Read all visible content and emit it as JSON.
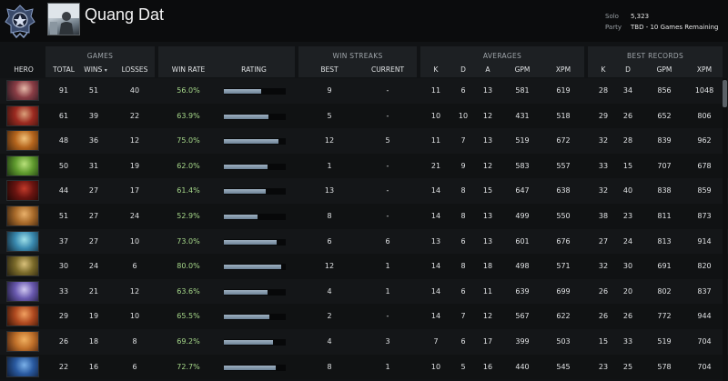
{
  "player": {
    "name": "Quang Dat",
    "solo_label": "Solo",
    "solo_value": "5,323",
    "party_label": "Party",
    "party_value": "TBD - 10 Games Remaining"
  },
  "groups": {
    "games": "GAMES",
    "win_streaks": "WIN STREAKS",
    "averages": "AVERAGES",
    "best_records": "BEST RECORDS"
  },
  "columns": {
    "hero": "HERO",
    "total": "TOTAL",
    "wins": "WINS",
    "losses": "LOSSES",
    "win_rate": "WIN RATE",
    "rating": "RATING",
    "best": "BEST",
    "current": "CURRENT",
    "k": "K",
    "d": "D",
    "a": "A",
    "gpm": "GPM",
    "xpm": "XPM",
    "best_k": "K",
    "best_d": "D",
    "best_gpm": "GPM",
    "best_xpm": "XPM"
  },
  "colors": {
    "winrate_text": "#a6d88a",
    "rating_bar": "#7d93a7"
  },
  "rows": [
    {
      "portrait": [
        "#e6b9a8",
        "#8a3d45",
        "#2b1a22"
      ],
      "total": "91",
      "wins": "51",
      "losses": "40",
      "win_rate": "56.0%",
      "rating": 0.6,
      "best": "9",
      "current": "-",
      "k": "11",
      "d": "6",
      "a": "13",
      "gpm": "581",
      "xpm": "619",
      "bk": "28",
      "bd": "34",
      "bgpm": "856",
      "bxpm": "1048"
    },
    {
      "portrait": [
        "#d9a07a",
        "#9b2a20",
        "#3a1410"
      ],
      "total": "61",
      "wins": "39",
      "losses": "22",
      "win_rate": "63.9%",
      "rating": 0.72,
      "best": "5",
      "current": "-",
      "k": "10",
      "d": "10",
      "a": "12",
      "gpm": "431",
      "xpm": "518",
      "bk": "29",
      "bd": "26",
      "bgpm": "652",
      "bxpm": "806"
    },
    {
      "portrait": [
        "#f2c27a",
        "#b5651d",
        "#4a2a10"
      ],
      "total": "48",
      "wins": "36",
      "losses": "12",
      "win_rate": "75.0%",
      "rating": 0.88,
      "best": "12",
      "current": "5",
      "k": "11",
      "d": "7",
      "a": "13",
      "gpm": "519",
      "xpm": "672",
      "bk": "32",
      "bd": "28",
      "bgpm": "839",
      "bxpm": "962"
    },
    {
      "portrait": [
        "#b8e07a",
        "#5f9a2e",
        "#1f3a12"
      ],
      "total": "50",
      "wins": "31",
      "losses": "19",
      "win_rate": "62.0%",
      "rating": 0.7,
      "best": "1",
      "current": "-",
      "k": "21",
      "d": "9",
      "a": "12",
      "gpm": "583",
      "xpm": "557",
      "bk": "33",
      "bd": "15",
      "bgpm": "707",
      "bxpm": "678"
    },
    {
      "portrait": [
        "#c23a2a",
        "#6a1410",
        "#200806"
      ],
      "total": "44",
      "wins": "27",
      "losses": "17",
      "win_rate": "61.4%",
      "rating": 0.68,
      "best": "13",
      "current": "-",
      "k": "14",
      "d": "8",
      "a": "15",
      "gpm": "647",
      "xpm": "638",
      "bk": "32",
      "bd": "40",
      "bgpm": "838",
      "bxpm": "859"
    },
    {
      "portrait": [
        "#e8b06a",
        "#a86a2a",
        "#3a2410"
      ],
      "total": "51",
      "wins": "27",
      "losses": "24",
      "win_rate": "52.9%",
      "rating": 0.55,
      "best": "8",
      "current": "-",
      "k": "14",
      "d": "8",
      "a": "13",
      "gpm": "499",
      "xpm": "550",
      "bk": "38",
      "bd": "23",
      "bgpm": "811",
      "bxpm": "873"
    },
    {
      "portrait": [
        "#9ee0e8",
        "#3a8ab0",
        "#122a3a"
      ],
      "total": "37",
      "wins": "27",
      "losses": "10",
      "win_rate": "73.0%",
      "rating": 0.85,
      "best": "6",
      "current": "6",
      "k": "13",
      "d": "6",
      "a": "13",
      "gpm": "601",
      "xpm": "676",
      "bk": "27",
      "bd": "24",
      "bgpm": "813",
      "bxpm": "914"
    },
    {
      "portrait": [
        "#d8c07a",
        "#7a6a2a",
        "#2a2410"
      ],
      "total": "30",
      "wins": "24",
      "losses": "6",
      "win_rate": "80.0%",
      "rating": 0.92,
      "best": "12",
      "current": "1",
      "k": "14",
      "d": "8",
      "a": "18",
      "gpm": "498",
      "xpm": "571",
      "bk": "32",
      "bd": "30",
      "bgpm": "691",
      "bxpm": "820"
    },
    {
      "portrait": [
        "#d0c8f0",
        "#6a5ab0",
        "#1e1a3a"
      ],
      "total": "33",
      "wins": "21",
      "losses": "12",
      "win_rate": "63.6%",
      "rating": 0.71,
      "best": "4",
      "current": "1",
      "k": "14",
      "d": "6",
      "a": "11",
      "gpm": "639",
      "xpm": "699",
      "bk": "26",
      "bd": "20",
      "bgpm": "802",
      "bxpm": "837"
    },
    {
      "portrait": [
        "#f0a060",
        "#b04a20",
        "#3a1608"
      ],
      "total": "29",
      "wins": "19",
      "losses": "10",
      "win_rate": "65.5%",
      "rating": 0.74,
      "best": "2",
      "current": "-",
      "k": "14",
      "d": "7",
      "a": "12",
      "gpm": "567",
      "xpm": "622",
      "bk": "26",
      "bd": "26",
      "bgpm": "772",
      "bxpm": "944"
    },
    {
      "portrait": [
        "#f0b060",
        "#c0702a",
        "#4a2410"
      ],
      "total": "26",
      "wins": "18",
      "losses": "8",
      "win_rate": "69.2%",
      "rating": 0.8,
      "best": "4",
      "current": "3",
      "k": "7",
      "d": "6",
      "a": "17",
      "gpm": "399",
      "xpm": "503",
      "bk": "15",
      "bd": "33",
      "bgpm": "519",
      "bxpm": "704"
    },
    {
      "portrait": [
        "#7ab0e8",
        "#2a5aa0",
        "#0e1e3a"
      ],
      "total": "22",
      "wins": "16",
      "losses": "6",
      "win_rate": "72.7%",
      "rating": 0.84,
      "best": "8",
      "current": "1",
      "k": "10",
      "d": "5",
      "a": "16",
      "gpm": "440",
      "xpm": "545",
      "bk": "23",
      "bd": "25",
      "bgpm": "578",
      "bxpm": "704"
    }
  ]
}
